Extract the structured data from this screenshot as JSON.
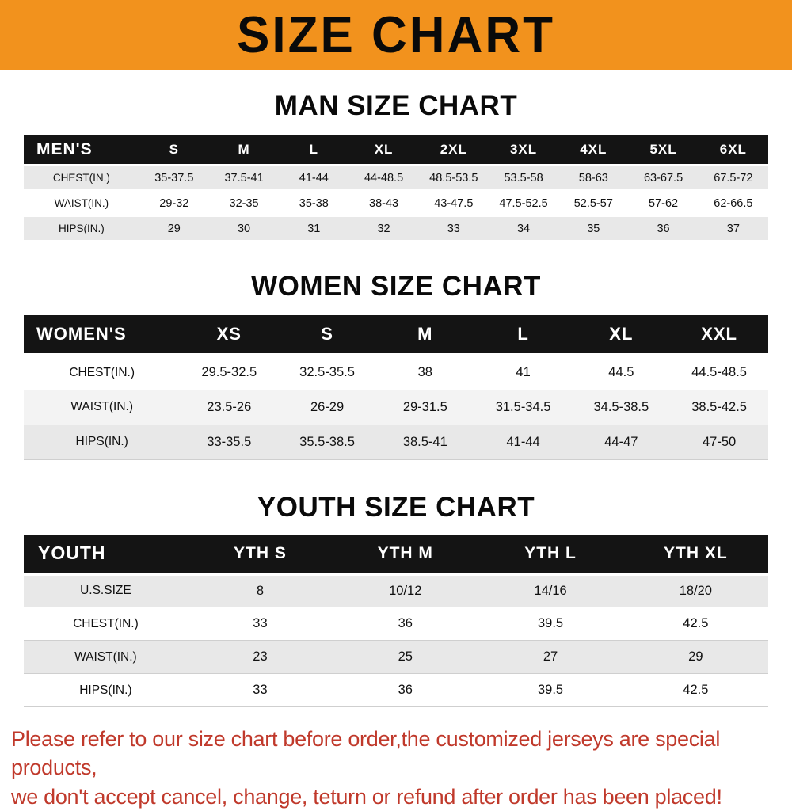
{
  "banner": {
    "title": "SIZE CHART"
  },
  "sections": {
    "men": {
      "heading": "MAN SIZE CHART",
      "table": {
        "header": [
          "MEN'S",
          "S",
          "M",
          "L",
          "XL",
          "2XL",
          "3XL",
          "4XL",
          "5XL",
          "6XL"
        ],
        "rows": [
          [
            "CHEST(IN.)",
            "35-37.5",
            "37.5-41",
            "41-44",
            "44-48.5",
            "48.5-53.5",
            "53.5-58",
            "58-63",
            "63-67.5",
            "67.5-72"
          ],
          [
            "WAIST(IN.)",
            "29-32",
            "32-35",
            "35-38",
            "38-43",
            "43-47.5",
            "47.5-52.5",
            "52.5-57",
            "57-62",
            "62-66.5"
          ],
          [
            "HIPS(IN.)",
            "29",
            "30",
            "31",
            "32",
            "33",
            "34",
            "35",
            "36",
            "37"
          ]
        ]
      }
    },
    "women": {
      "heading": "WOMEN SIZE CHART",
      "table": {
        "header": [
          "WOMEN'S",
          "XS",
          "S",
          "M",
          "L",
          "XL",
          "XXL"
        ],
        "rows": [
          [
            "CHEST(IN.)",
            "29.5-32.5",
            "32.5-35.5",
            "38",
            "41",
            "44.5",
            "44.5-48.5"
          ],
          [
            "WAIST(IN.)",
            "23.5-26",
            "26-29",
            "29-31.5",
            "31.5-34.5",
            "34.5-38.5",
            "38.5-42.5"
          ],
          [
            "HIPS(IN.)",
            "33-35.5",
            "35.5-38.5",
            "38.5-41",
            "41-44",
            "44-47",
            "47-50"
          ]
        ]
      }
    },
    "youth": {
      "heading": "YOUTH SIZE CHART",
      "table": {
        "header": [
          "YOUTH",
          "YTH S",
          "YTH M",
          "YTH L",
          "YTH XL"
        ],
        "rows": [
          [
            "U.S.SIZE",
            "8",
            "10/12",
            "14/16",
            "18/20"
          ],
          [
            "CHEST(IN.)",
            "33",
            "36",
            "39.5",
            "42.5"
          ],
          [
            "WAIST(IN.)",
            "23",
            "25",
            "27",
            "29"
          ],
          [
            "HIPS(IN.)",
            "33",
            "36",
            "39.5",
            "42.5"
          ]
        ]
      }
    }
  },
  "footer": {
    "line1": "Please refer to our size chart before order,the customized jerseys are special products,",
    "line2": "we don't accept cancel, change, teturn or refund after order has been placed!"
  },
  "colors": {
    "banner_bg": "#f2921d",
    "table_header_bg": "#141414",
    "header_text": "#ffffff",
    "row_shade": "#e8e8e8",
    "row_shade_light": "#f3f3f3",
    "notice_text": "#c0392b"
  }
}
